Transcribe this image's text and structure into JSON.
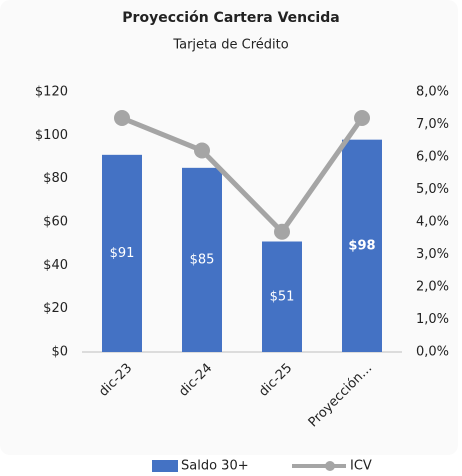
{
  "chart_data": {
    "type": "bar_line",
    "title": "Proyección Cartera Vencida",
    "subtitle": "Tarjeta de Crédito",
    "categories": [
      "dic-23",
      "dic-24",
      "dic-25",
      "Proyección…"
    ],
    "series": [
      {
        "name": "Saldo 30+",
        "color": "#4472c4",
        "type": "bar",
        "values": [
          91,
          85,
          51,
          98
        ],
        "value_labels": [
          "$91",
          "$85",
          "$51",
          "$98"
        ]
      },
      {
        "name": "ICV",
        "color": "#a5a5a5",
        "type": "line",
        "axis": "y2",
        "values": [
          7.2,
          6.2,
          3.7,
          7.2
        ]
      }
    ],
    "ylim": [
      0,
      120
    ],
    "yticks": [
      {
        "value": 0,
        "label": "$0"
      },
      {
        "value": 20,
        "label": "$20"
      },
      {
        "value": 40,
        "label": "$40"
      },
      {
        "value": 60,
        "label": "$60"
      },
      {
        "value": 80,
        "label": "$80"
      },
      {
        "value": 100,
        "label": "$100"
      },
      {
        "value": 120,
        "label": "$120"
      }
    ],
    "y2lim": [
      0,
      8
    ],
    "y2ticks": [
      {
        "value": 0,
        "label": "0,0%"
      },
      {
        "value": 1,
        "label": "1,0%"
      },
      {
        "value": 2,
        "label": "2,0%"
      },
      {
        "value": 3,
        "label": "3,0%"
      },
      {
        "value": 4,
        "label": "4,0%"
      },
      {
        "value": 5,
        "label": "5,0%"
      },
      {
        "value": 6,
        "label": "6,0%"
      },
      {
        "value": 7,
        "label": "7,0%"
      },
      {
        "value": 8,
        "label": "8,0%"
      }
    ],
    "legend": "bottom"
  }
}
